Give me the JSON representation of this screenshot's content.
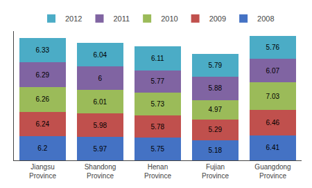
{
  "chart_data": {
    "type": "bar",
    "categories": [
      "Jiangsu\nProvince",
      "Shandong\nProvince",
      "Henan\nProvince",
      "Fujian\nProvince",
      "Guangdong\nProvince"
    ],
    "series": [
      {
        "name": "2008",
        "color": "#4472C4",
        "values": [
          6.2,
          5.97,
          5.75,
          5.18,
          6.41
        ]
      },
      {
        "name": "2009",
        "color": "#C0504D",
        "values": [
          6.24,
          5.98,
          5.78,
          5.29,
          6.46
        ]
      },
      {
        "name": "2010",
        "color": "#9BBB59",
        "values": [
          6.26,
          6.01,
          5.73,
          4.97,
          7.03
        ]
      },
      {
        "name": "2011",
        "color": "#8064A2",
        "values": [
          6.29,
          6.0,
          5.77,
          5.88,
          6.07
        ]
      },
      {
        "name": "2012",
        "color": "#4BACC6",
        "values": [
          6.33,
          6.04,
          6.11,
          5.79,
          5.76
        ]
      }
    ],
    "stacked": true,
    "data_labels": true,
    "ylim": [
      0,
      33
    ],
    "tick_labels": "x",
    "legend": "top",
    "grid": false
  }
}
